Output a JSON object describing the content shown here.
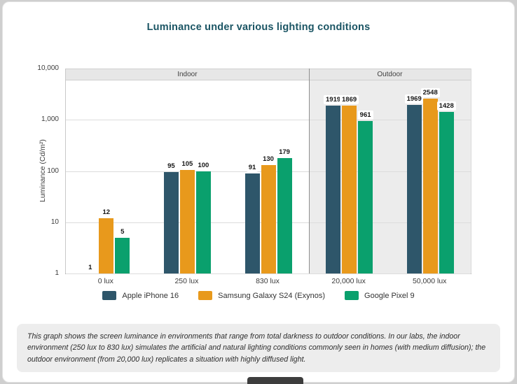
{
  "page": {
    "title": "Luminance under various lighting conditions",
    "footer_note": "This graph shows the screen luminance in environments that range from total darkness to outdoor conditions. In our labs, the indoor environment (250 lux to 830 lux) simulates the artificial and natural lighting conditions commonly seen in homes (with medium diffusion); the outdoor environment (from 20,000 lux) replicates a situation with highly diffused light."
  },
  "chart_data": {
    "type": "bar",
    "scale": "log",
    "title": "Luminance under various lighting conditions",
    "ylabel": "Luminance (Cd/m²)",
    "ylim": [
      1,
      10000
    ],
    "ytick_values": [
      1,
      10,
      100,
      1000,
      10000
    ],
    "ytick_labels": [
      "1",
      "10",
      "100",
      "1,000",
      "10,000"
    ],
    "categories": [
      "0 lux",
      "250 lux",
      "830 lux",
      "20,000 lux",
      "50,000 lux"
    ],
    "regions": [
      {
        "label": "Indoor",
        "span": [
          0,
          2
        ]
      },
      {
        "label": "Outdoor",
        "span": [
          3,
          4
        ]
      }
    ],
    "series": [
      {
        "name": "Apple iPhone 16",
        "color": "#2e566a",
        "values": [
          1,
          95,
          91,
          1919,
          1969
        ]
      },
      {
        "name": "Samsung Galaxy S24 (Exynos)",
        "color": "#e8991c",
        "values": [
          12,
          105,
          130,
          1869,
          2548
        ]
      },
      {
        "name": "Google Pixel 9",
        "color": "#0aa06d",
        "values": [
          5,
          100,
          179,
          961,
          1428
        ]
      }
    ],
    "legend_position": "bottom",
    "grid": true
  }
}
